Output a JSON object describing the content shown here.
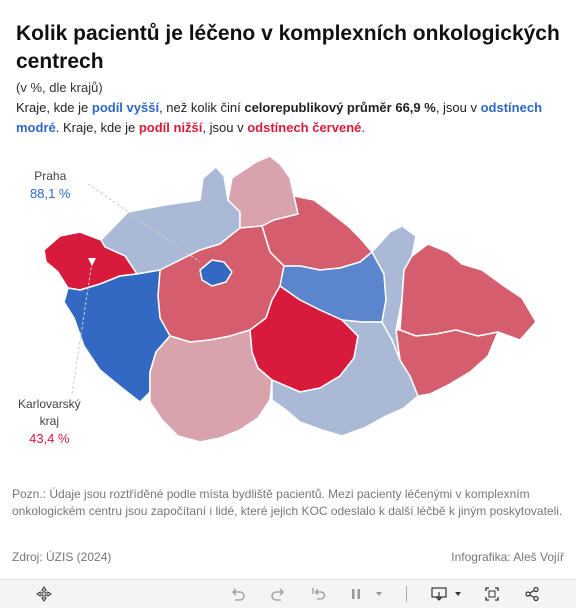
{
  "header": {
    "title": "Kolik pacientů je léčeno v komplexních onkologických centrech",
    "subtitle": "(v %, dle krajů)",
    "desc_1": "Kraje, kde je ",
    "desc_2": "podíl vyšší",
    "desc_3": ", než kolik činí ",
    "desc_4": "celorepublikový průměr 66,9 %",
    "desc_5": ", jsou v ",
    "desc_6": "odstínech modré",
    "desc_7": ". Kraje, kde je ",
    "desc_8": "podíl nižší",
    "desc_9": ", jsou v ",
    "desc_10": "odstínech červené",
    "desc_11": "."
  },
  "map": {
    "colors": {
      "dark_blue": "#3368c3",
      "mid_blue": "#5b85cc",
      "light_blue": "#a9b9d6",
      "dark_red": "#d81b3c",
      "mid_red": "#d45d6e",
      "light_red": "#d9a3ad"
    },
    "labels": {
      "praha": {
        "name": "Praha",
        "value": "88,1 %"
      },
      "karlovarsky": {
        "name_line1": "Karlovarský",
        "name_line2": "kraj",
        "value": "43,4 %"
      }
    }
  },
  "footer": {
    "note": "Pozn.: Údaje jsou roztříděné podle místa bydliště pacientů. Mezi pacienty léčenými v komplexním onkologickém centru jsou započítaní i lidé, které jejich KOC odeslalo k další léčbě k jiným poskytovateli.",
    "source": "Zdroj: ÚZIS (2024)",
    "credit": "Infografika: Aleš Vojíř"
  },
  "toolbar": {
    "icons": [
      "move-icon",
      "undo-icon",
      "redo-icon",
      "revert-icon",
      "pause-icon",
      "download-icon",
      "fullscreen-icon",
      "share-icon"
    ]
  }
}
